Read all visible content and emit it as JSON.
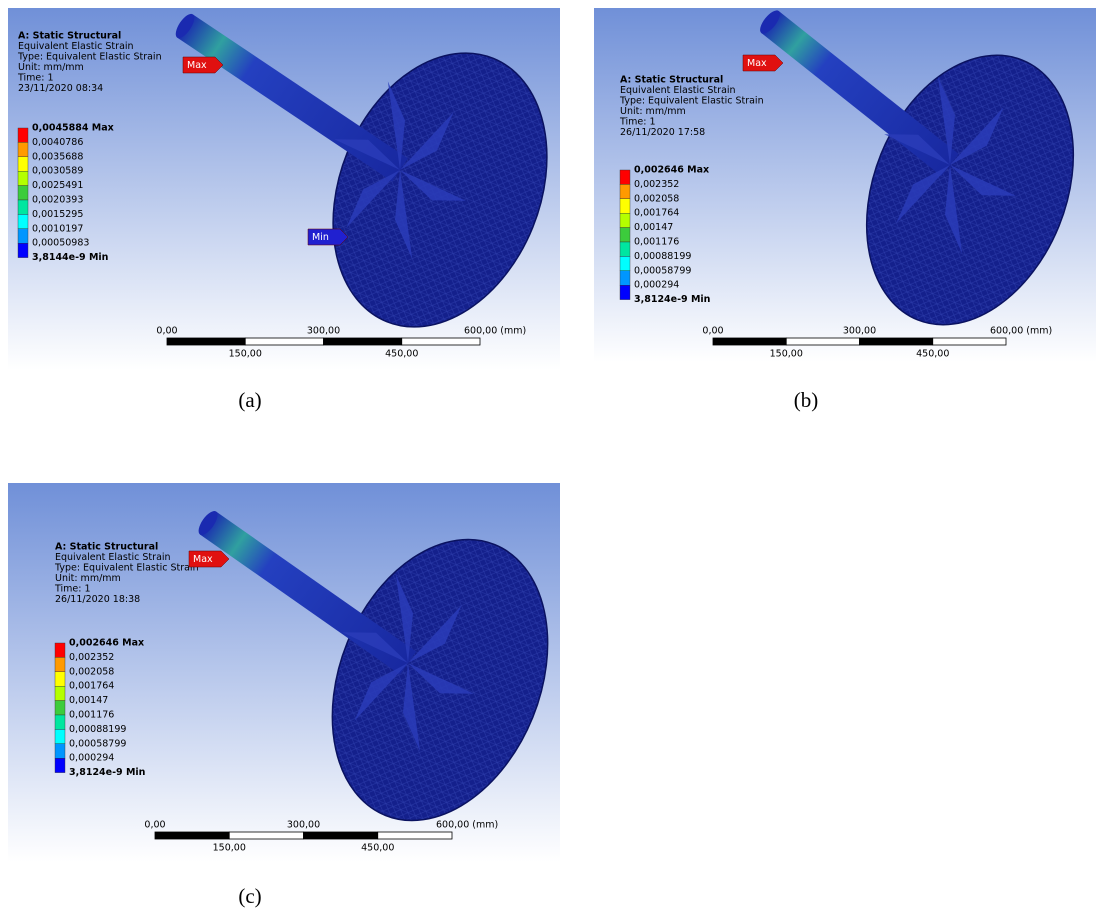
{
  "panels": [
    {
      "caption": "(a)",
      "title": "A: Static Structural",
      "lines": [
        "Equivalent Elastic Strain",
        "Type: Equivalent Elastic Strain",
        "Unit: mm/mm",
        "Time: 1",
        "23/11/2020 08:34"
      ],
      "legend": [
        "0,0045884 Max",
        "0,0040786",
        "0,0035688",
        "0,0030589",
        "0,0025491",
        "0,0020393",
        "0,0015295",
        "0,0010197",
        "0,00050983",
        "3,8144e-9 Min"
      ],
      "probes": [
        "Max",
        "Min"
      ],
      "scale_top": [
        "0,00",
        "300,00",
        "600,00 (mm)"
      ],
      "scale_bottom": [
        "150,00",
        "450,00"
      ]
    },
    {
      "caption": "(b)",
      "title": "A: Static Structural",
      "lines": [
        "Equivalent Elastic Strain",
        "Type: Equivalent Elastic Strain",
        "Unit: mm/mm",
        "Time: 1",
        "26/11/2020 17:58"
      ],
      "legend": [
        "0,002646 Max",
        "0,002352",
        "0,002058",
        "0,001764",
        "0,00147",
        "0,001176",
        "0,00088199",
        "0,00058799",
        "0,000294",
        "3,8124e-9 Min"
      ],
      "probes": [
        "Max"
      ],
      "scale_top": [
        "0,00",
        "300,00",
        "600,00 (mm)"
      ],
      "scale_bottom": [
        "150,00",
        "450,00"
      ]
    },
    {
      "caption": "(c)",
      "title": "A: Static Structural",
      "lines": [
        "Equivalent Elastic Strain",
        "Type: Equivalent Elastic Strain",
        "Unit: mm/mm",
        "Time: 1",
        "26/11/2020 18:38"
      ],
      "legend": [
        "0,002646 Max",
        "0,002352",
        "0,002058",
        "0,001764",
        "0,00147",
        "0,001176",
        "0,00088199",
        "0,00058799",
        "0,000294",
        "3,8124e-9 Min"
      ],
      "probes": [
        "Max"
      ],
      "scale_top": [
        "0,00",
        "300,00",
        "600,00 (mm)"
      ],
      "scale_bottom": [
        "150,00",
        "450,00"
      ]
    }
  ]
}
